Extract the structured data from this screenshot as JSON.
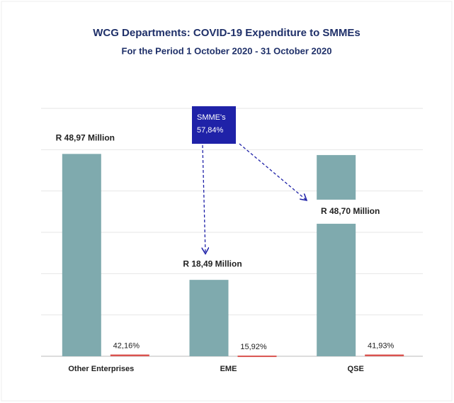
{
  "chart_data": {
    "type": "bar",
    "title": "WCG Departments: COVID-19 Expenditure to SMMEs",
    "subtitle": "For the Period 1 October 2020 - 31 October 2020",
    "categories": [
      "Other Enterprises",
      "EME",
      "QSE"
    ],
    "series": [
      {
        "color": "#7faaae",
        "values": [
          48.97,
          18.49,
          48.7
        ],
        "value_labels": [
          "R 48,97 Million",
          "R 18,49 Million",
          "R 48,70 Million"
        ]
      },
      {
        "color": "#d9534f",
        "values": [
          0.4216,
          0.1592,
          0.4193
        ],
        "value_labels": [
          "42,16%",
          "15,92%",
          "41,93%"
        ]
      }
    ],
    "ylim": [
      0,
      60
    ],
    "yticks": [
      0,
      10,
      20,
      30,
      40,
      50,
      60
    ],
    "grid": true,
    "tick_labels": false,
    "annotation": {
      "lines": [
        "SMME's",
        "57,84%"
      ],
      "color": "#1f22a8"
    }
  }
}
